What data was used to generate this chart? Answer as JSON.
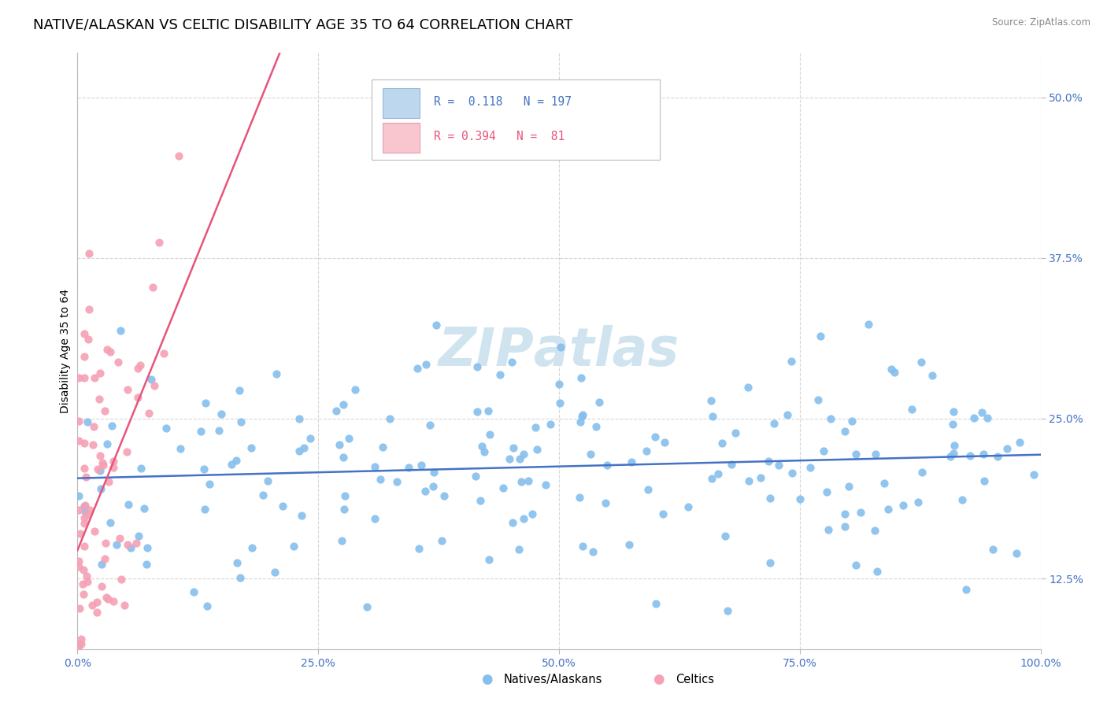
{
  "title": "NATIVE/ALASKAN VS CELTIC DISABILITY AGE 35 TO 64 CORRELATION CHART",
  "source": "Source: ZipAtlas.com",
  "ylabel": "Disability Age 35 to 64",
  "xlim": [
    0.0,
    1.0
  ],
  "ylim": [
    0.07,
    0.535
  ],
  "xticks": [
    0.0,
    0.25,
    0.5,
    0.75,
    1.0
  ],
  "xtick_labels": [
    "0.0%",
    "25.0%",
    "50.0%",
    "75.0%",
    "100.0%"
  ],
  "yticks": [
    0.125,
    0.25,
    0.375,
    0.5
  ],
  "ytick_labels": [
    "12.5%",
    "25.0%",
    "37.5%",
    "50.0%"
  ],
  "blue_color": "#85BFED",
  "pink_color": "#F5A0B4",
  "blue_line_color": "#4472C4",
  "pink_line_color": "#E8547A",
  "legend_blue_fill": "#BDD7EE",
  "legend_pink_fill": "#F9C6D0",
  "R_blue": 0.118,
  "N_blue": 197,
  "R_pink": 0.394,
  "N_pink": 81,
  "title_fontsize": 13,
  "axis_label_fontsize": 10,
  "tick_fontsize": 10,
  "watermark_color": "#D0E4F0",
  "legend_label_1": "Natives/Alaskans",
  "legend_label_2": "Celtics"
}
